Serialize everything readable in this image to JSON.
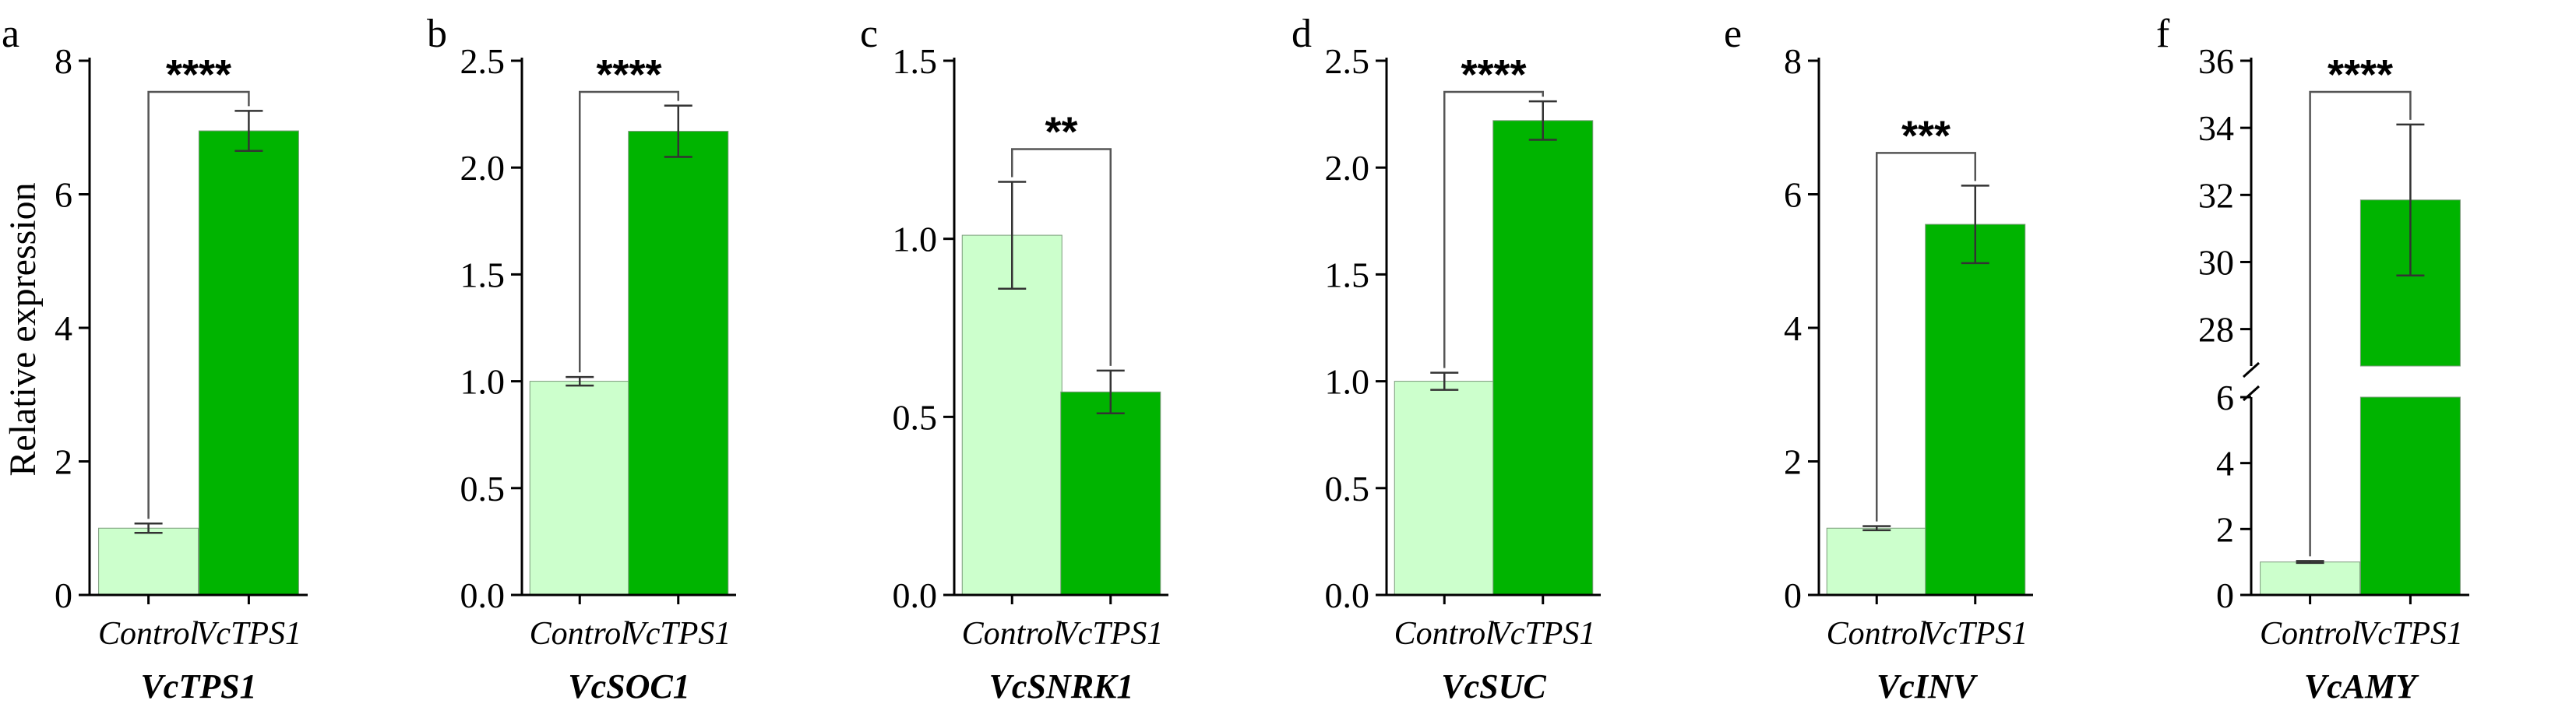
{
  "figure": {
    "ylabel": "Relative expression",
    "colors": {
      "control": "#ccffcc",
      "treated": "#00b400",
      "axis": "#000000",
      "bracket": "#555555"
    }
  },
  "chart_data": [
    {
      "type": "bar",
      "panel_letter": "a",
      "title": "VcTPS1",
      "categories": [
        "Control",
        "VcTPS1"
      ],
      "values": [
        1.0,
        6.95
      ],
      "errors": [
        0.07,
        0.3
      ],
      "ylim": [
        0,
        8
      ],
      "yticks": [
        "0",
        "2",
        "4",
        "6",
        "8"
      ],
      "significance": "****",
      "ylabel": "Relative expression"
    },
    {
      "type": "bar",
      "panel_letter": "b",
      "title": "VcSOC1",
      "categories": [
        "Control",
        "VcTPS1"
      ],
      "values": [
        1.0,
        2.17
      ],
      "errors": [
        0.02,
        0.12
      ],
      "ylim": [
        0,
        2.5
      ],
      "yticks": [
        "0.0",
        "0.5",
        "1.0",
        "1.5",
        "2.0",
        "2.5"
      ],
      "significance": "****"
    },
    {
      "type": "bar",
      "panel_letter": "c",
      "title": "VcSNRK1",
      "categories": [
        "Control",
        "VcTPS1"
      ],
      "values": [
        1.01,
        0.57
      ],
      "errors": [
        0.15,
        0.06
      ],
      "ylim": [
        0,
        1.5
      ],
      "yticks": [
        "0.0",
        "0.5",
        "1.0",
        "1.5"
      ],
      "significance": "**"
    },
    {
      "type": "bar",
      "panel_letter": "d",
      "title": "VcSUC",
      "categories": [
        "Control",
        "VcTPS1"
      ],
      "values": [
        1.0,
        2.22
      ],
      "errors": [
        0.04,
        0.09
      ],
      "ylim": [
        0,
        2.5
      ],
      "yticks": [
        "0.0",
        "0.5",
        "1.0",
        "1.5",
        "2.0",
        "2.5"
      ],
      "significance": "****"
    },
    {
      "type": "bar",
      "panel_letter": "e",
      "title": "VcINV",
      "categories": [
        "Control",
        "VcTPS1"
      ],
      "values": [
        1.0,
        5.55
      ],
      "errors": [
        0.03,
        0.58
      ],
      "ylim": [
        0,
        8
      ],
      "yticks": [
        "0",
        "2",
        "4",
        "6",
        "8"
      ],
      "significance": "***"
    },
    {
      "type": "bar",
      "panel_letter": "f",
      "title": "VcAMY",
      "categories": [
        "Control",
        "VcTPS1"
      ],
      "values": [
        1.0,
        31.85
      ],
      "errors": [
        0.03,
        2.25
      ],
      "ylim": [
        0,
        36
      ],
      "axis_break": [
        6,
        26.9
      ],
      "yticks": [
        "0",
        "2",
        "4",
        "6",
        "28",
        "30",
        "32",
        "34",
        "36"
      ],
      "significance": "****"
    }
  ]
}
